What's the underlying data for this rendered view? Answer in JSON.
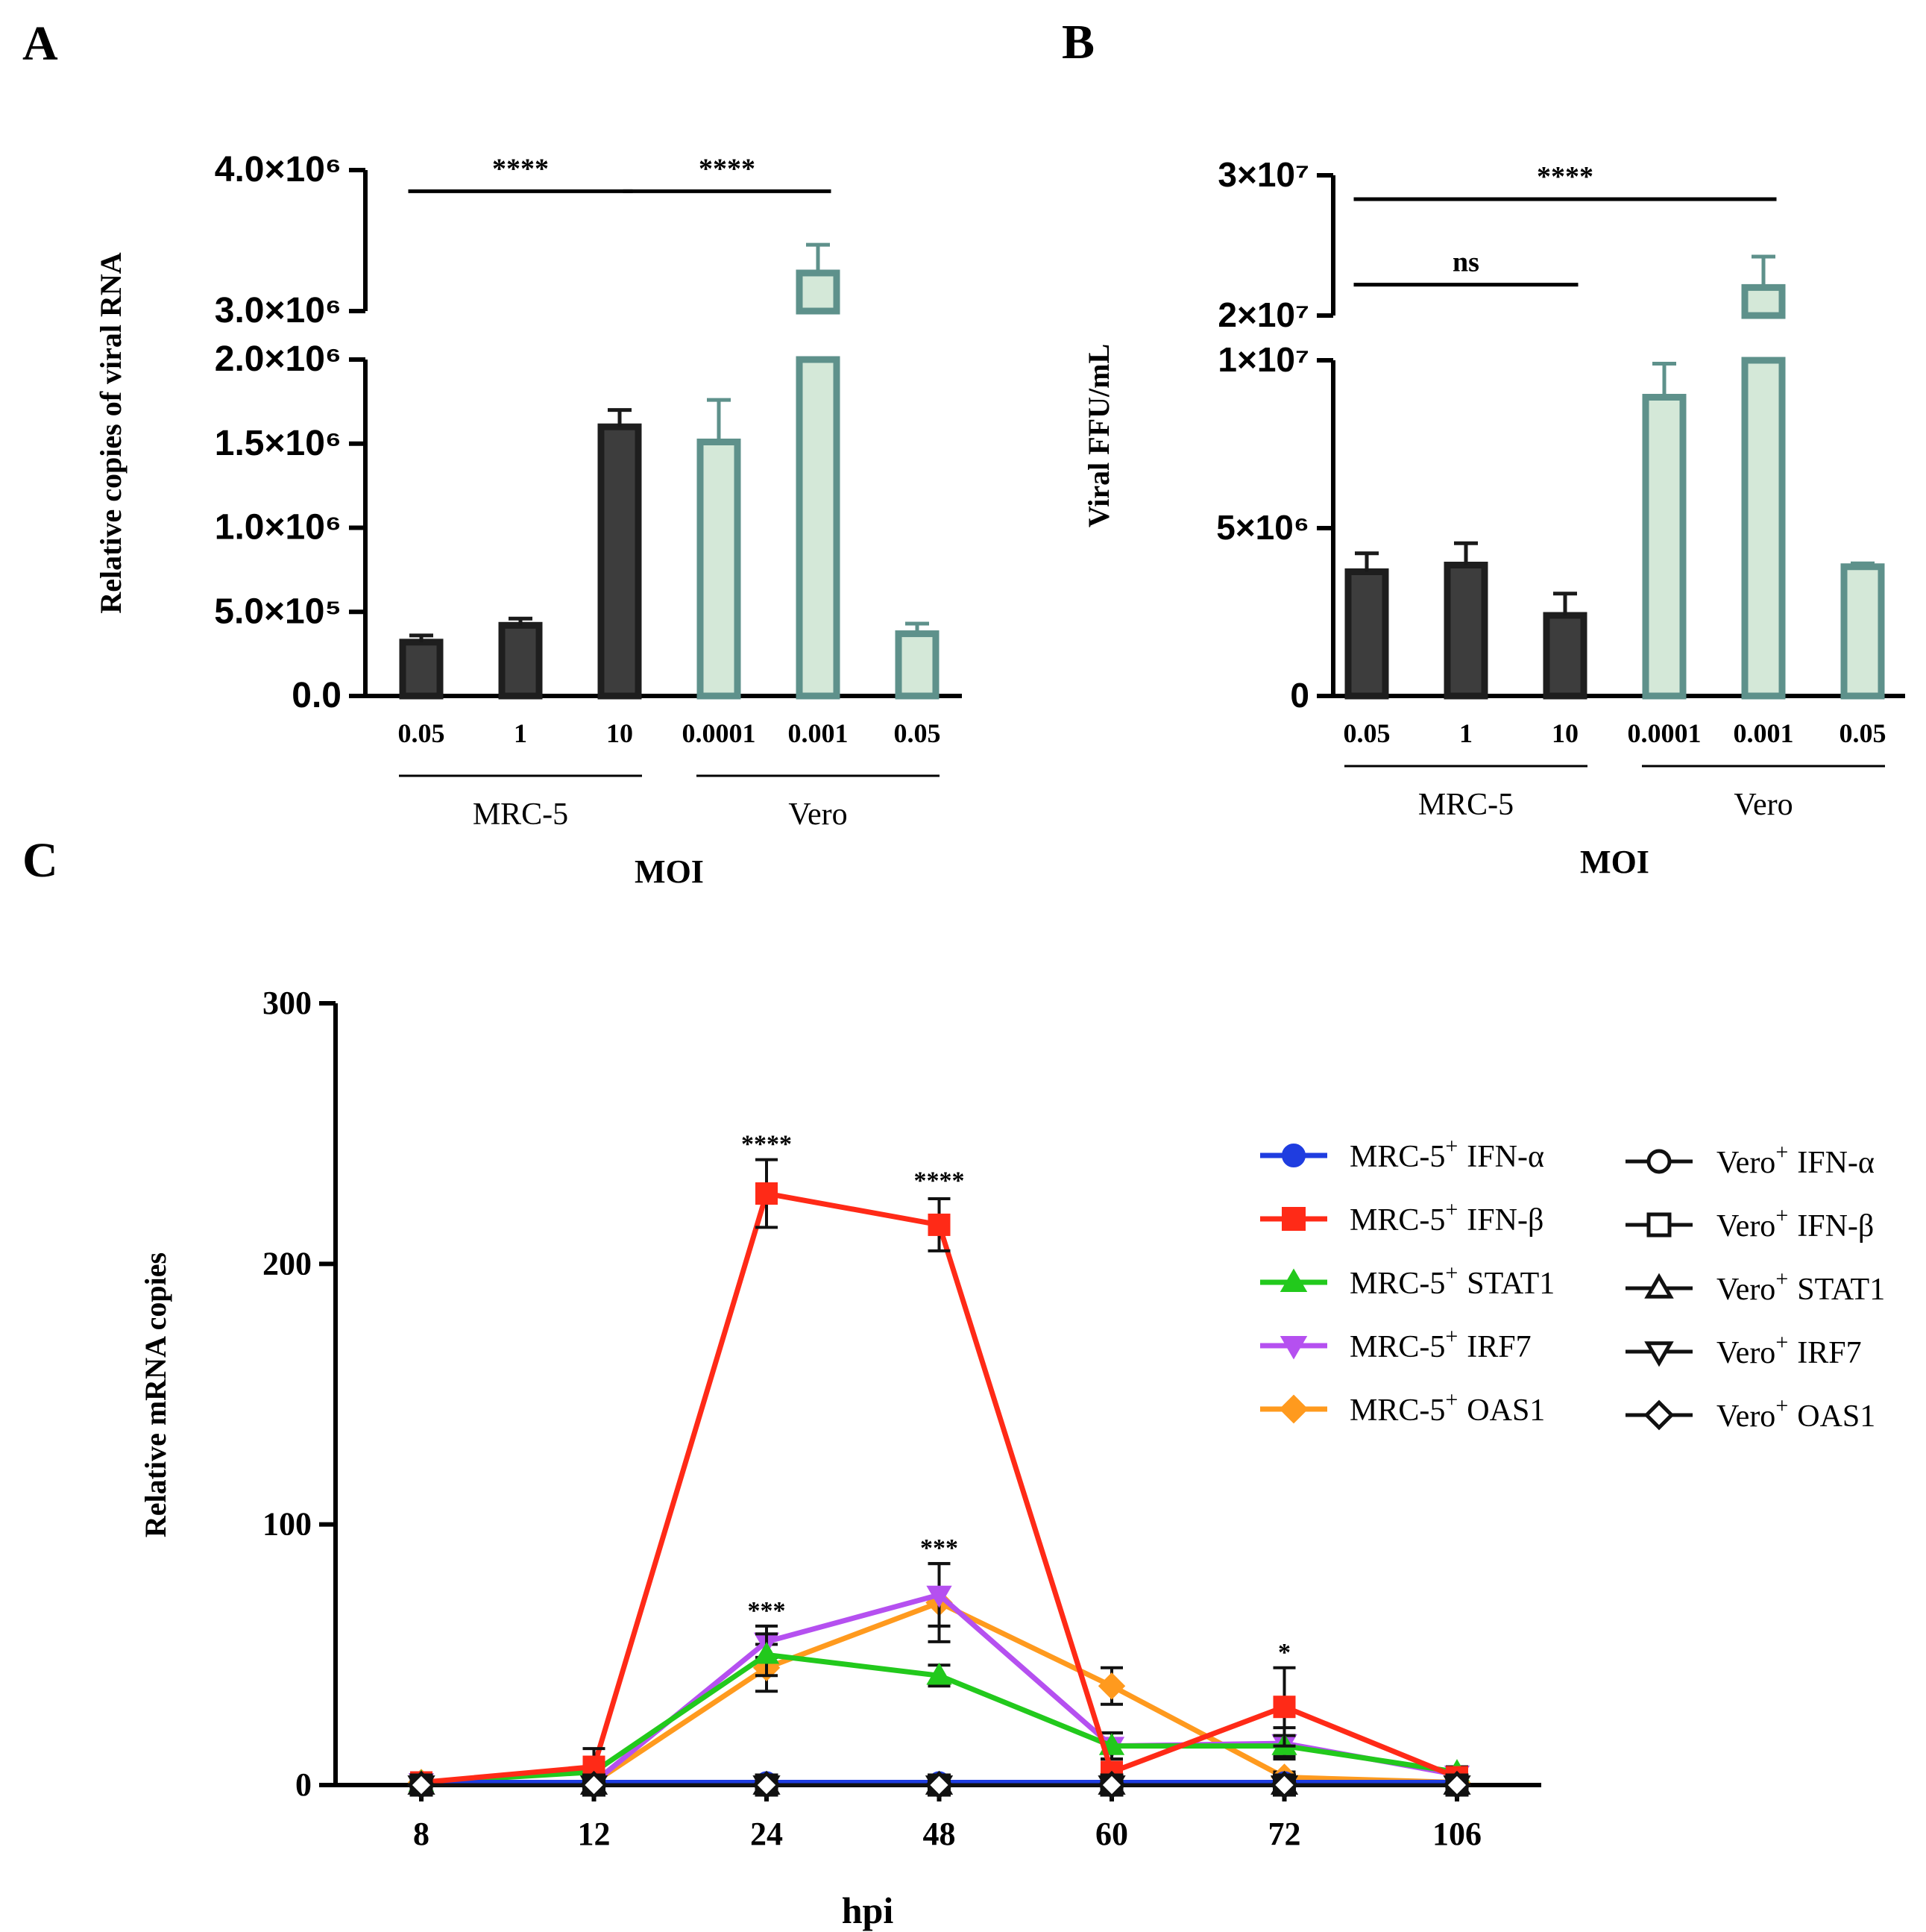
{
  "colors": {
    "dark_bar": "#3d3d3d",
    "light_bar_fill": "#d4e8d8",
    "light_bar_edge": "#5e918b",
    "ifn_a": "#1f3de0",
    "ifn_b": "#ff2a17",
    "stat1": "#22c91c",
    "irf7": "#b550f0",
    "oas1": "#ff9a1e",
    "vero": "#111111"
  },
  "chart_data": [
    {
      "panel": "A",
      "type": "bar",
      "ylabel": "Relative copies of viral RNA",
      "xlabel": "MOI",
      "categories": [
        "0.05",
        "1",
        "10",
        "0.0001",
        "0.001",
        "0.05"
      ],
      "groups": [
        {
          "label": "MRC-5",
          "indices": [
            0,
            1,
            2
          ]
        },
        {
          "label": "Vero",
          "indices": [
            3,
            4,
            5
          ]
        }
      ],
      "values": [
        320000,
        420000,
        1600000,
        1510000,
        3270000,
        370000
      ],
      "errors": [
        40000,
        40000,
        100000,
        250000,
        200000,
        60000
      ],
      "series_style": [
        "dark",
        "dark",
        "dark",
        "light",
        "light",
        "light"
      ],
      "axis_break": {
        "lower": [
          0,
          2000000
        ],
        "upper": [
          3000000,
          4000000
        ]
      },
      "yticks_lower": [
        {
          "value": 0,
          "label": "0.0"
        },
        {
          "value": 500000,
          "label": "5.0×10⁵"
        },
        {
          "value": 1000000,
          "label": "1.0×10⁶"
        },
        {
          "value": 1500000,
          "label": "1.5×10⁶"
        },
        {
          "value": 2000000,
          "label": "2.0×10⁶"
        }
      ],
      "yticks_upper": [
        {
          "value": 3000000,
          "label": "3.0×10⁶"
        },
        {
          "value": 4000000,
          "label": "4.0×10⁶"
        }
      ],
      "significance": [
        {
          "from": 0,
          "to": 2,
          "label": "****",
          "level": 3850000
        },
        {
          "from": 2,
          "to": 4,
          "label": "****",
          "level": 3850000
        }
      ]
    },
    {
      "panel": "B",
      "type": "bar",
      "ylabel": "Viral FFU/mL",
      "xlabel": "MOI",
      "categories": [
        "0.05",
        "1",
        "10",
        "0.0001",
        "0.001",
        "0.05"
      ],
      "groups": [
        {
          "label": "MRC-5",
          "indices": [
            0,
            1,
            2
          ]
        },
        {
          "label": "Vero",
          "indices": [
            3,
            4,
            5
          ]
        }
      ],
      "values": [
        3700000,
        3900000,
        2400000,
        8900000,
        22000000,
        3850000
      ],
      "errors": [
        550000,
        650000,
        650000,
        1000000,
        2200000,
        100000
      ],
      "series_style": [
        "dark",
        "dark",
        "dark",
        "light",
        "light",
        "light"
      ],
      "axis_break": {
        "lower": [
          0,
          10000000
        ],
        "upper": [
          20000000,
          30000000
        ]
      },
      "yticks_lower": [
        {
          "value": 0,
          "label": "0"
        },
        {
          "value": 5000000,
          "label": "5×10⁶"
        },
        {
          "value": 10000000,
          "label": "1×10⁷"
        }
      ],
      "yticks_upper": [
        {
          "value": 20000000,
          "label": "2×10⁷"
        },
        {
          "value": 30000000,
          "label": "3×10⁷"
        }
      ],
      "significance": [
        {
          "from": 0,
          "to": 4,
          "label": "****",
          "level": 28300000
        },
        {
          "from": 0,
          "to": 2,
          "label": "ns",
          "level": 22200000
        }
      ]
    },
    {
      "panel": "C",
      "type": "line",
      "ylabel": "Relative mRNA copies",
      "xlabel": "hpi",
      "categories": [
        "8",
        "12",
        "24",
        "48",
        "60",
        "72",
        "106"
      ],
      "ylim": [
        0,
        300
      ],
      "yticks": [
        0,
        100,
        200,
        300
      ],
      "series": [
        {
          "name": "MRC-5⁺ IFN-α",
          "label_base": "MRC-5",
          "label_gene": "IFN-α",
          "marker": "circle",
          "filled": true,
          "color_key": "ifn_a",
          "values": [
            1,
            1,
            1,
            1,
            1,
            1,
            1
          ],
          "errors": [
            0,
            0,
            0,
            0,
            0,
            0,
            0
          ]
        },
        {
          "name": "MRC-5⁺ IFN-β",
          "label_base": "MRC-5",
          "label_gene": "IFN-β",
          "marker": "square",
          "filled": true,
          "color_key": "ifn_b",
          "values": [
            1,
            7,
            227,
            215,
            5,
            30,
            3
          ],
          "errors": [
            0,
            7,
            13,
            10,
            3,
            15,
            2
          ]
        },
        {
          "name": "MRC-5⁺ STAT1",
          "label_base": "MRC-5",
          "label_gene": "STAT1",
          "marker": "triangle-up",
          "filled": true,
          "color_key": "stat1",
          "values": [
            1,
            5,
            50,
            42,
            15,
            15,
            5
          ],
          "errors": [
            0,
            3,
            8,
            4,
            5,
            4,
            2
          ]
        },
        {
          "name": "MRC-5⁺ IRF7",
          "label_base": "MRC-5",
          "label_gene": "IRF7",
          "marker": "triangle-down",
          "filled": true,
          "color_key": "irf7",
          "values": [
            1,
            1,
            55,
            73,
            15,
            16,
            4
          ],
          "errors": [
            0,
            1,
            6,
            12,
            5,
            6,
            2
          ]
        },
        {
          "name": "MRC-5⁺ OAS1",
          "label_base": "MRC-5",
          "label_gene": "OAS1",
          "marker": "diamond",
          "filled": true,
          "color_key": "oas1",
          "values": [
            1,
            1,
            45,
            70,
            38,
            3,
            1
          ],
          "errors": [
            0,
            1,
            9,
            15,
            7,
            2,
            1
          ]
        },
        {
          "name": "Vero⁺ IFN-α",
          "label_base": "Vero",
          "label_gene": "IFN-α",
          "marker": "circle",
          "filled": false,
          "color_key": "vero",
          "values": [
            0,
            0,
            0,
            0,
            0,
            0,
            0
          ],
          "errors": [
            0,
            0,
            0,
            0,
            0,
            0,
            0
          ]
        },
        {
          "name": "Vero⁺ IFN-β",
          "label_base": "Vero",
          "label_gene": "IFN-β",
          "marker": "square",
          "filled": false,
          "color_key": "vero",
          "values": [
            0,
            0,
            0,
            0,
            0,
            0,
            0
          ],
          "errors": [
            0,
            0,
            0,
            0,
            0,
            0,
            0
          ]
        },
        {
          "name": "Vero⁺ STAT1",
          "label_base": "Vero",
          "label_gene": "STAT1",
          "marker": "triangle-up",
          "filled": false,
          "color_key": "vero",
          "values": [
            0,
            0,
            0,
            0,
            0,
            0,
            0
          ],
          "errors": [
            0,
            0,
            0,
            0,
            0,
            0,
            0
          ]
        },
        {
          "name": "Vero⁺ IRF7",
          "label_base": "Vero",
          "label_gene": "IRF7",
          "marker": "triangle-down",
          "filled": false,
          "color_key": "vero",
          "values": [
            0,
            0,
            0,
            0,
            0,
            0,
            0
          ],
          "errors": [
            0,
            0,
            0,
            0,
            0,
            0,
            0
          ]
        },
        {
          "name": "Vero⁺ OAS1",
          "label_base": "Vero",
          "label_gene": "OAS1",
          "marker": "diamond",
          "filled": false,
          "color_key": "vero",
          "values": [
            0,
            0,
            0,
            0,
            0,
            0,
            0
          ],
          "errors": [
            0,
            0,
            0,
            0,
            0,
            0,
            0
          ]
        }
      ],
      "annotations": [
        {
          "category_index": 2,
          "value": 240,
          "text": "****"
        },
        {
          "category_index": 3,
          "value": 226,
          "text": "****"
        },
        {
          "category_index": 2,
          "value": 61,
          "text": "***"
        },
        {
          "category_index": 3,
          "value": 85,
          "text": "***"
        },
        {
          "category_index": 5,
          "value": 45,
          "text": "*"
        }
      ]
    }
  ],
  "panel_labels": [
    "A",
    "B",
    "C"
  ]
}
